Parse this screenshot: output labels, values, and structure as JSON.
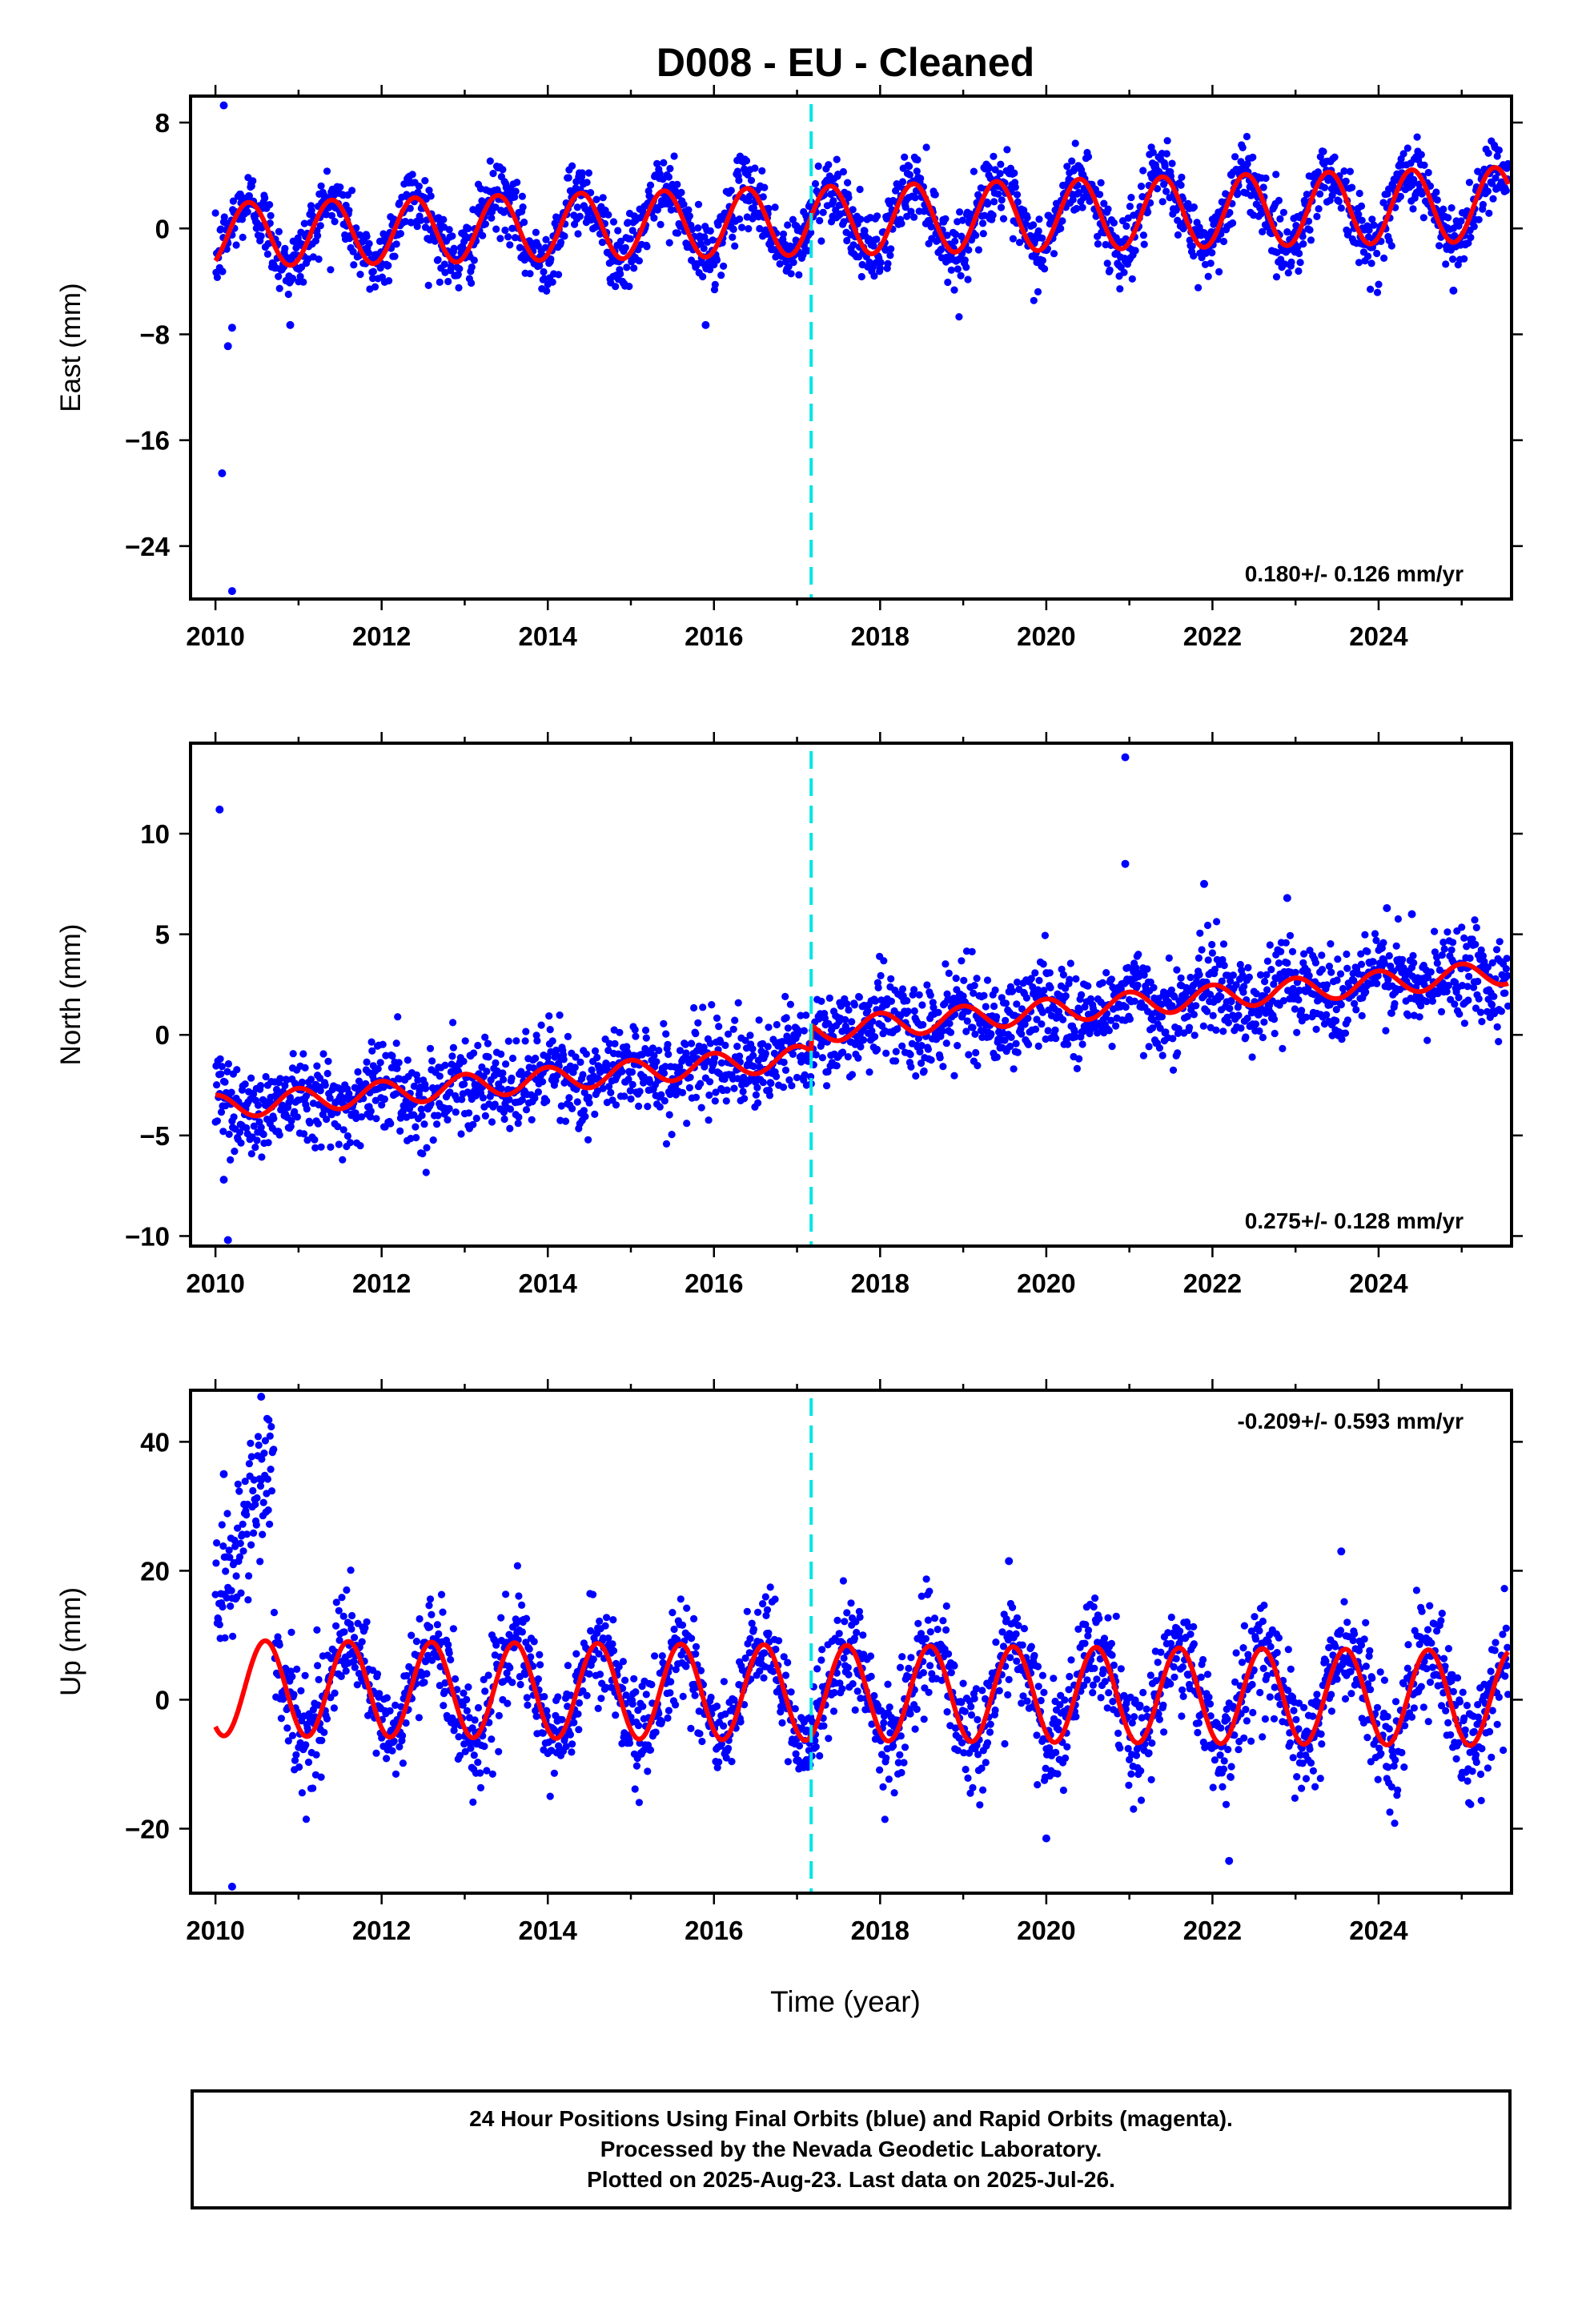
{
  "title": "D008  - EU - Cleaned",
  "xlabel": "Time (year)",
  "colors": {
    "points": "#0000ff",
    "fit": "#ff0000",
    "offset_line": "#00e5e5",
    "frame": "#000000"
  },
  "chart_data": [
    {
      "type": "scatter",
      "panel": "east",
      "ylabel": "East (mm)",
      "xlim": [
        2009.7,
        2025.6
      ],
      "ylim": [
        -28,
        10
      ],
      "x_ticks": [
        2010,
        2012,
        2014,
        2016,
        2018,
        2020,
        2022,
        2024
      ],
      "y_ticks": [
        8,
        0,
        -8,
        -16,
        -24
      ],
      "offset_epoch": 2017.17,
      "rate_label": "0.180+/- 0.126 mm/yr",
      "fit": {
        "base": -0.5,
        "trend_mm_per_yr": 0.15,
        "annual_amp_start": 2.4,
        "annual_amp_end": 2.8,
        "peak_phase": 0.4
      },
      "scatter_sd": 1.3,
      "outliers": [
        {
          "x": 2010.1,
          "y": 9.3
        },
        {
          "x": 2010.08,
          "y": -18.5
        },
        {
          "x": 2010.2,
          "y": -27.4
        },
        {
          "x": 2010.15,
          "y": -8.9
        },
        {
          "x": 2010.2,
          "y": -7.5
        },
        {
          "x": 2010.9,
          "y": -7.3
        },
        {
          "x": 2015.9,
          "y": -7.3
        },
        {
          "x": 2024.9,
          "y": -4.7
        }
      ]
    },
    {
      "type": "scatter",
      "panel": "north",
      "ylabel": "North (mm)",
      "xlim": [
        2009.7,
        2025.6
      ],
      "ylim": [
        -10.5,
        14.5
      ],
      "x_ticks": [
        2010,
        2012,
        2014,
        2016,
        2018,
        2020,
        2022,
        2024
      ],
      "y_ticks": [
        10,
        5,
        0,
        -5,
        -10
      ],
      "offset_epoch": 2017.17,
      "rate_label": "0.275+/- 0.128 mm/yr",
      "fit": {
        "start": -3.0,
        "end": 2.4,
        "step_at_offset": 1.3,
        "annual_amp": 0.6,
        "peak_phase": 0.0
      },
      "scatter_sd": 1.1,
      "outliers": [
        {
          "x": 2010.05,
          "y": 11.2
        },
        {
          "x": 2010.1,
          "y": -7.2
        },
        {
          "x": 2010.15,
          "y": -10.2
        },
        {
          "x": 2020.95,
          "y": 13.8
        },
        {
          "x": 2020.95,
          "y": 8.5
        },
        {
          "x": 2021.9,
          "y": 7.5
        },
        {
          "x": 2022.9,
          "y": 6.8
        },
        {
          "x": 2024.1,
          "y": 6.3
        },
        {
          "x": 2024.4,
          "y": 6.0
        }
      ]
    },
    {
      "type": "scatter",
      "panel": "up",
      "ylabel": "Up (mm)",
      "xlim": [
        2009.7,
        2025.6
      ],
      "ylim": [
        -30,
        48
      ],
      "x_ticks": [
        2010,
        2012,
        2014,
        2016,
        2018,
        2020,
        2022,
        2024
      ],
      "y_ticks": [
        40,
        20,
        0,
        -20
      ],
      "offset_epoch": 2017.17,
      "rate_label": "-0.209+/- 0.593 mm/yr",
      "fit": {
        "base": 1.8,
        "trend_mm_per_yr": -0.1,
        "annual_amp": 7.4,
        "peak_phase": 0.6
      },
      "scatter_sd": 4.0,
      "early_anomaly": {
        "x_start": 2010.0,
        "x_end": 2010.7,
        "y_start": 15,
        "y_end": 38
      },
      "outliers": [
        {
          "x": 2010.55,
          "y": 47
        },
        {
          "x": 2010.2,
          "y": -29
        },
        {
          "x": 2010.1,
          "y": 35
        },
        {
          "x": 2019.55,
          "y": 21.5
        },
        {
          "x": 2023.55,
          "y": 23
        },
        {
          "x": 2020.0,
          "y": -21.5
        },
        {
          "x": 2022.2,
          "y": -25
        }
      ]
    }
  ],
  "footer": {
    "line1": "24 Hour Positions Using Final Orbits (blue) and Rapid Orbits (magenta).",
    "line2": "Processed by the Nevada Geodetic Laboratory.",
    "line3": "Plotted on 2025-Aug-23. Last data on 2025-Jul-26."
  }
}
